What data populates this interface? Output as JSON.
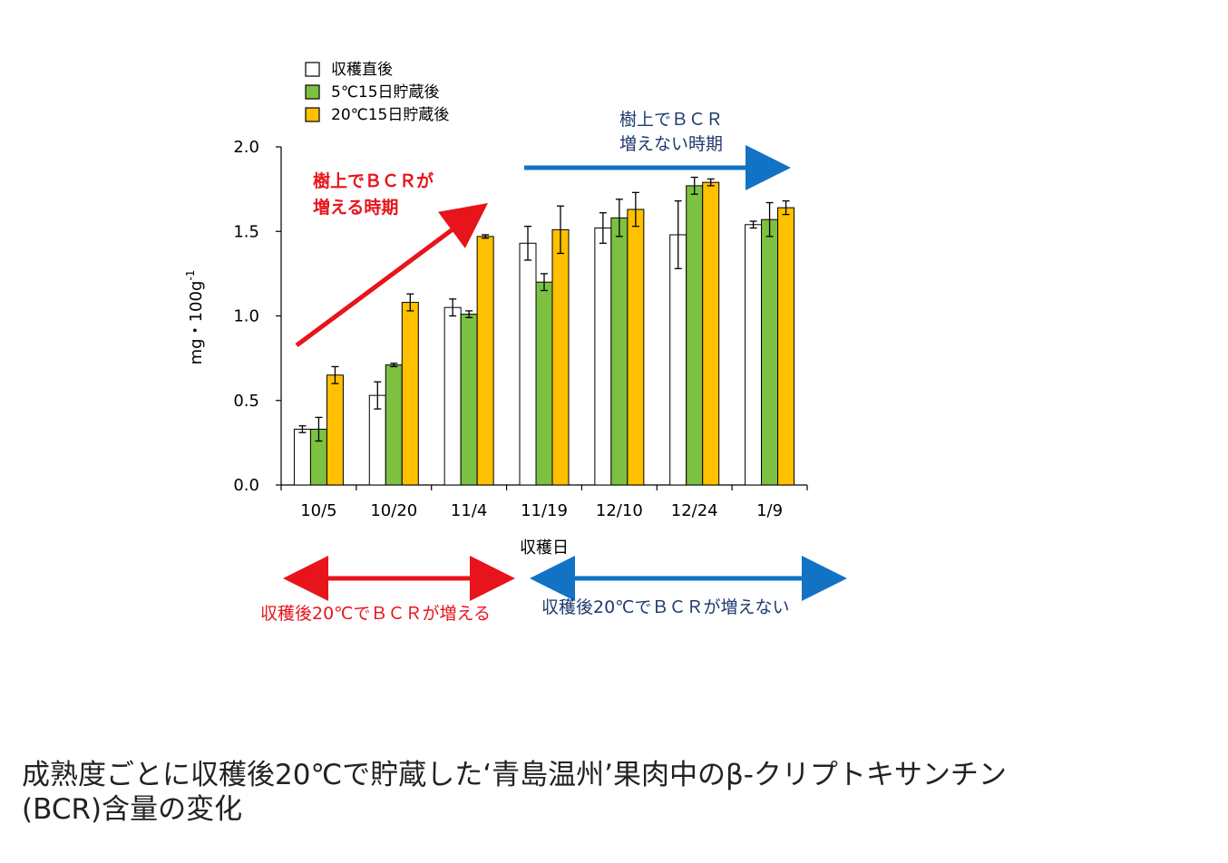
{
  "chart_data": {
    "type": "bar",
    "categories": [
      "10/5",
      "10/20",
      "11/4",
      "11/19",
      "12/10",
      "12/24",
      "1/9"
    ],
    "series": [
      {
        "name": "収穫直後",
        "color": "#ffffff",
        "values": [
          0.33,
          0.53,
          1.05,
          1.43,
          1.52,
          1.48,
          1.54
        ],
        "errors": [
          0.02,
          0.08,
          0.05,
          0.1,
          0.09,
          0.2,
          0.02
        ]
      },
      {
        "name": "5℃15日貯蔵後",
        "color": "#7dc142",
        "values": [
          0.33,
          0.71,
          1.01,
          1.2,
          1.58,
          1.77,
          1.57
        ],
        "errors": [
          0.07,
          0.01,
          0.02,
          0.05,
          0.11,
          0.05,
          0.1
        ]
      },
      {
        "name": "20℃15日貯蔵後",
        "color": "#ffc000",
        "values": [
          0.65,
          1.08,
          1.47,
          1.51,
          1.63,
          1.79,
          1.64
        ],
        "errors": [
          0.05,
          0.05,
          0.01,
          0.14,
          0.1,
          0.02,
          0.04
        ]
      }
    ],
    "title": "",
    "xlabel": "収穫日",
    "ylabel": "mg・100g",
    "ylabel_superscript": "-1",
    "ylim": [
      0,
      2.0
    ],
    "yticks": [
      "0.0",
      "0.5",
      "1.0",
      "1.5",
      "2.0"
    ],
    "grid": false,
    "legend_position": "top-left",
    "annotations": {
      "red_top": [
        "樹上でＢＣＲが",
        "増える時期"
      ],
      "blue_top": [
        "樹上でＢＣＲ",
        "増えない時期"
      ],
      "red_bottom": "収穫後20℃でＢＣＲが増える",
      "blue_bottom": "収穫後20℃でＢＣＲが増えない"
    },
    "colors": {
      "red": "#e8141b",
      "blue": "#1272c4",
      "navy_text": "#1f3a6e"
    }
  },
  "caption": {
    "line1": "成熟度ごとに収穫後20℃で貯蔵した‘青島温州’果肉中のβ-クリプトキサンチン",
    "line2": "(BCR)含量の変化"
  }
}
